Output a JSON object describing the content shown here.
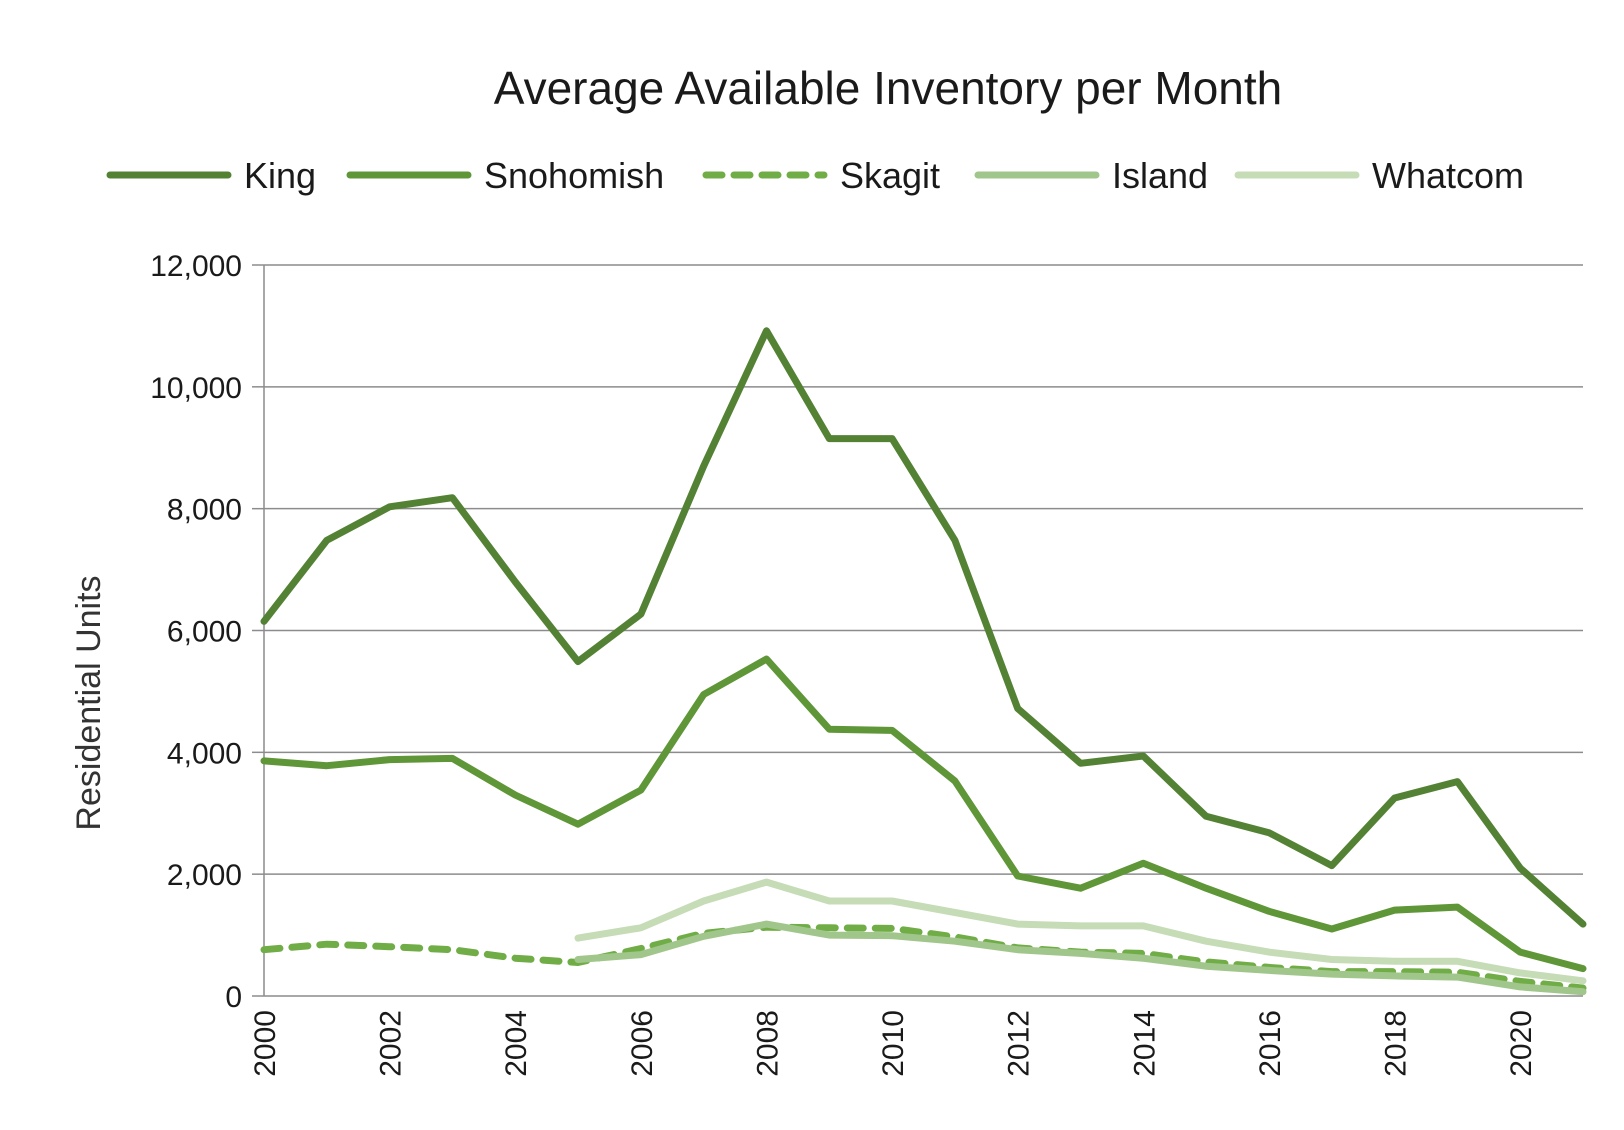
{
  "chart_data": {
    "type": "line",
    "title_parts": [
      {
        "text": "Average Available ",
        "bold": false
      },
      {
        "text": "Inventory",
        "bold": true
      },
      {
        "text": " per Month",
        "bold": false
      }
    ],
    "ylabel": "Residential Units",
    "xlabel": "",
    "ylim": [
      0,
      12000
    ],
    "y_ticks": [
      0,
      2000,
      4000,
      6000,
      8000,
      10000,
      12000
    ],
    "y_tick_labels": [
      "0",
      "2,000",
      "4,000",
      "6,000",
      "8,000",
      "10,000",
      "12,000"
    ],
    "xlim": [
      2000,
      2021
    ],
    "x_tick_labels": [
      "2000",
      "2002",
      "2004",
      "2006",
      "2008",
      "2010",
      "2012",
      "2014",
      "2016",
      "2018",
      "2020"
    ],
    "x_ticks": [
      2000,
      2002,
      2004,
      2006,
      2008,
      2010,
      2012,
      2014,
      2016,
      2018,
      2020
    ],
    "grid": "horizontal",
    "legend_position": "top",
    "series": [
      {
        "name": "King",
        "color": "#548235",
        "dashed": false,
        "x": [
          2000,
          2001,
          2002,
          2003,
          2004,
          2005,
          2006,
          2007,
          2008,
          2009,
          2010,
          2011,
          2012,
          2013,
          2014,
          2015,
          2016,
          2017,
          2018,
          2019,
          2020,
          2021
        ],
        "values": [
          6150,
          7480,
          8030,
          8180,
          6800,
          5490,
          6270,
          8700,
          10920,
          9150,
          9150,
          7480,
          4720,
          3820,
          3940,
          2950,
          2680,
          2140,
          3250,
          3520,
          2100,
          1180
        ]
      },
      {
        "name": "Snohomish",
        "color": "#5f9638",
        "dashed": false,
        "x": [
          2000,
          2001,
          2002,
          2003,
          2004,
          2005,
          2006,
          2007,
          2008,
          2009,
          2010,
          2011,
          2012,
          2013,
          2014,
          2015,
          2016,
          2017,
          2018,
          2019,
          2020,
          2021
        ],
        "values": [
          3860,
          3780,
          3880,
          3900,
          3300,
          2820,
          3380,
          4950,
          5530,
          4380,
          4360,
          3530,
          1970,
          1770,
          2180,
          1770,
          1390,
          1100,
          1410,
          1460,
          720,
          450
        ]
      },
      {
        "name": "Skagit",
        "color": "#70ad47",
        "dashed": true,
        "x": [
          2000,
          2001,
          2002,
          2003,
          2004,
          2005,
          2006,
          2007,
          2008,
          2009,
          2010,
          2011,
          2012,
          2013,
          2014,
          2015,
          2016,
          2017,
          2018,
          2019,
          2020,
          2021
        ],
        "values": [
          760,
          850,
          810,
          760,
          620,
          550,
          780,
          1030,
          1130,
          1120,
          1110,
          970,
          790,
          720,
          700,
          560,
          470,
          400,
          400,
          390,
          240,
          130
        ]
      },
      {
        "name": "Island",
        "color": "#a1c68b",
        "dashed": false,
        "x": [
          2005,
          2006,
          2007,
          2008,
          2009,
          2010,
          2011,
          2012,
          2013,
          2014,
          2015,
          2016,
          2017,
          2018,
          2019,
          2020,
          2021
        ],
        "values": [
          600,
          680,
          980,
          1180,
          1000,
          990,
          900,
          760,
          700,
          620,
          490,
          420,
          360,
          330,
          310,
          150,
          70
        ]
      },
      {
        "name": "Whatcom",
        "color": "#c5dcb6",
        "dashed": false,
        "x": [
          2005,
          2006,
          2007,
          2008,
          2009,
          2010,
          2011,
          2012,
          2013,
          2014,
          2015,
          2016,
          2017,
          2018,
          2019,
          2020,
          2021
        ],
        "values": [
          950,
          1120,
          1560,
          1870,
          1560,
          1560,
          1370,
          1180,
          1150,
          1150,
          900,
          720,
          600,
          570,
          570,
          380,
          250
        ]
      }
    ]
  }
}
